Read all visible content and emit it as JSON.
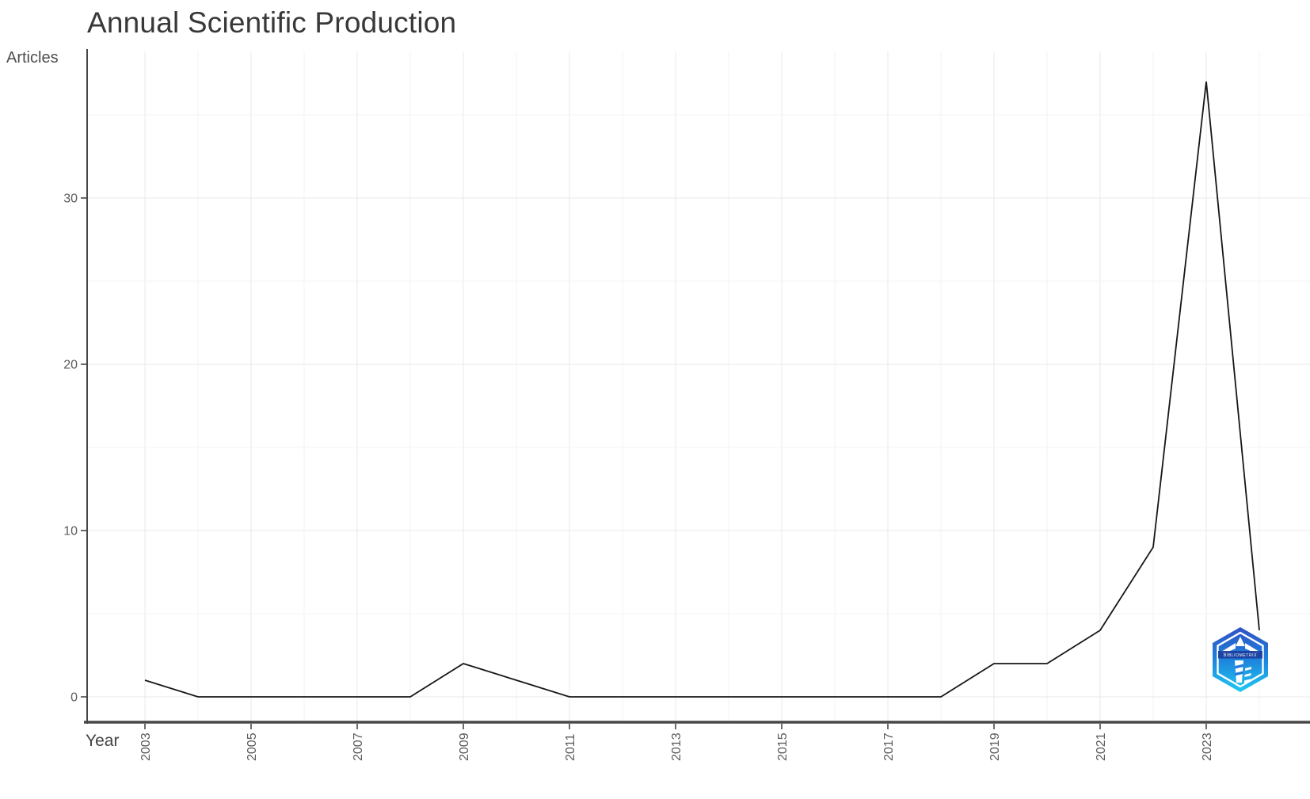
{
  "title": "Annual Scientific Production",
  "y_axis_label": "Articles",
  "x_axis_label": "Year",
  "logo": {
    "icon": "bibliometrix-lighthouse-badge",
    "band_text": "BIBLIOMETRIX"
  },
  "chart_data": {
    "type": "line",
    "title": "Annual Scientific Production",
    "xlabel": "Year",
    "ylabel": "Articles",
    "x": [
      2003,
      2004,
      2005,
      2006,
      2007,
      2008,
      2009,
      2010,
      2011,
      2012,
      2013,
      2014,
      2015,
      2016,
      2017,
      2018,
      2019,
      2020,
      2021,
      2022,
      2023,
      2024
    ],
    "values": [
      1,
      0,
      0,
      0,
      0,
      0,
      2,
      1,
      0,
      0,
      0,
      0,
      0,
      0,
      0,
      0,
      2,
      2,
      4,
      9,
      37,
      4
    ],
    "x_tick_labels": [
      2003,
      2005,
      2007,
      2009,
      2011,
      2013,
      2015,
      2017,
      2019,
      2021,
      2023
    ],
    "y_ticks": [
      0,
      10,
      20,
      30
    ],
    "y_minor_ticks": [
      5,
      15,
      25,
      35
    ],
    "ylim": [
      0,
      39
    ],
    "grid": true,
    "legend": "none",
    "line_color": "#161616",
    "axis_color": "#474747",
    "tick_label_color": "#5b5b5b",
    "major_grid_color": "#e9e9e9",
    "minor_grid_color": "#f3f3f3",
    "background": "#ffffff"
  }
}
